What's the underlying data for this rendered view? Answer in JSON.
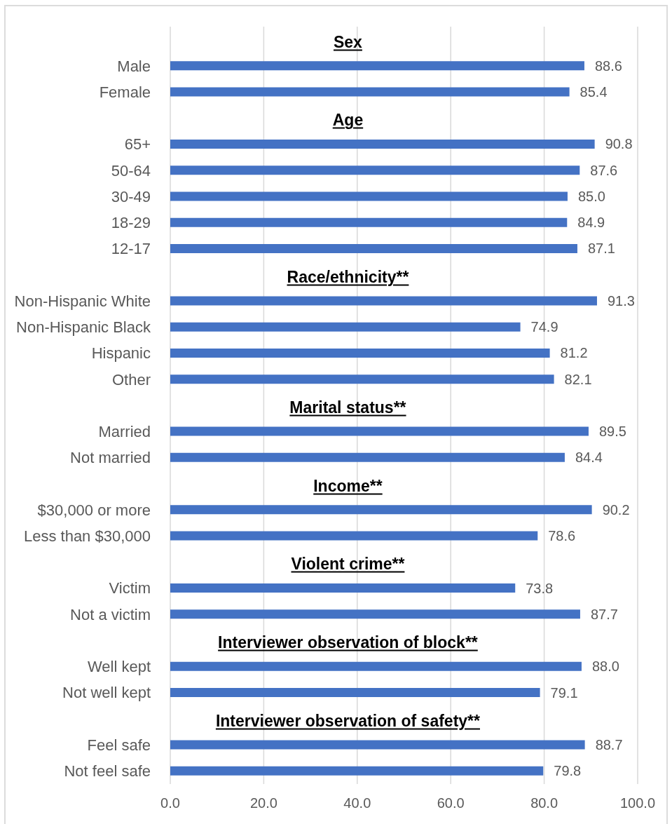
{
  "chart_data": {
    "type": "bar",
    "orientation": "horizontal",
    "categories": [
      null,
      "Male",
      "Female",
      null,
      "65+",
      "50-64",
      "30-49",
      "18-29",
      "12-17",
      null,
      "Non-Hispanic White",
      "Non-Hispanic Black",
      "Hispanic",
      "Other",
      null,
      "Married",
      "Not married",
      null,
      "$30,000 or more",
      "Less than $30,000",
      null,
      "Victim",
      "Not a victim",
      null,
      "Well kept",
      "Not well kept",
      null,
      "Feel safe",
      "Not feel safe"
    ],
    "values": [
      null,
      88.6,
      85.4,
      null,
      90.8,
      87.6,
      85.0,
      84.9,
      87.1,
      null,
      91.3,
      74.9,
      81.2,
      82.1,
      null,
      89.5,
      84.4,
      null,
      90.2,
      78.6,
      null,
      73.8,
      87.7,
      null,
      88.0,
      79.1,
      null,
      88.7,
      79.8
    ],
    "value_labels": [
      null,
      "88.6",
      "85.4",
      null,
      "90.8",
      "87.6",
      "85.0",
      "84.9",
      "87.1",
      null,
      "91.3",
      "74.9",
      "81.2",
      "82.1",
      null,
      "89.5",
      "84.4",
      null,
      "90.2",
      "78.6",
      null,
      "73.8",
      "87.7",
      null,
      "88.0",
      "79.1",
      null,
      "88.7",
      "79.8"
    ],
    "color": "#4472c4",
    "xlim": [
      0,
      100
    ],
    "xticks": [
      {
        "value": 0,
        "label": "0.0"
      },
      {
        "value": 20,
        "label": "20.0"
      },
      {
        "value": 40,
        "label": "40.0"
      },
      {
        "value": 60,
        "label": "60.0"
      },
      {
        "value": 80,
        "label": "80.0"
      },
      {
        "value": 100,
        "label": "100.0"
      }
    ],
    "grid": "x",
    "annotations": [
      "Sex",
      "Age",
      "Race/ethnicity**",
      "Marital status**",
      "Income**",
      "Violent crime**",
      "Interviewer observation of block**",
      "Interviewer observation of safety**"
    ]
  }
}
